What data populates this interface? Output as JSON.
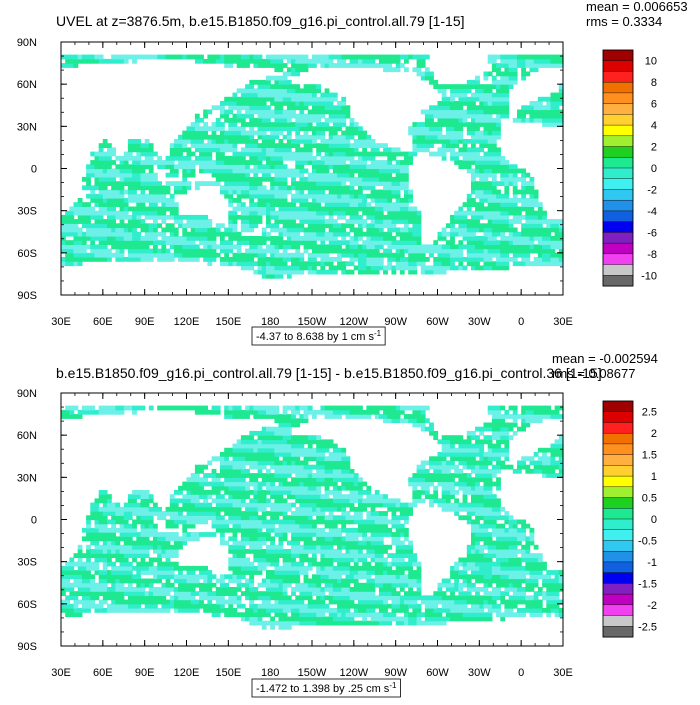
{
  "colors": {
    "ocean_low": "#1ee890",
    "ocean_mid": "#30eecc",
    "ocean_high": "#6cf0e8",
    "land": "#ffffff",
    "frame": "#000000"
  },
  "chart_data": [
    {
      "type": "heatmap",
      "title": "UVEL at z=3876.5m, b.e15.B1850.f09_g16.pi_control.all.79 [1-15]",
      "stats": {
        "mean": "mean = 0.006653",
        "rms": "rms = 0.3334"
      },
      "x_ticks": [
        "30E",
        "60E",
        "90E",
        "120E",
        "150E",
        "180",
        "150W",
        "120W",
        "90W",
        "60W",
        "30W",
        "0",
        "30E"
      ],
      "y_ticks": [
        "90N",
        "60N",
        "30N",
        "0",
        "30S",
        "60S",
        "90S"
      ],
      "xlim": [
        30,
        390
      ],
      "ylim": [
        -90,
        90
      ],
      "range_label": "-4.37 to 8.638 by 1 cm s",
      "range_sup": "-1",
      "colorbar": {
        "labels": [
          "10",
          "8",
          "6",
          "4",
          "2",
          "0",
          "-2",
          "-4",
          "-6",
          "-8",
          "-10"
        ],
        "colors": [
          "#a00000",
          "#dd0000",
          "#ff2020",
          "#f07000",
          "#ff9020",
          "#ffb040",
          "#ffd030",
          "#ffff00",
          "#a0f030",
          "#20d020",
          "#1ee890",
          "#30eecc",
          "#40f0f0",
          "#30c8f0",
          "#2090e8",
          "#1060e0",
          "#0000f0",
          "#8020c0",
          "#c000c0",
          "#f040f0",
          "#c8c8c8",
          "#686868"
        ]
      }
    },
    {
      "type": "heatmap",
      "title": "b.e15.B1850.f09_g16.pi_control.all.79 [1-15] - b.e15.B1850.f09_g16.pi_control.36 [1-15]",
      "stats": {
        "mean": "mean = -0.002594",
        "rms": "rms = 0.08677"
      },
      "x_ticks": [
        "30E",
        "60E",
        "90E",
        "120E",
        "150E",
        "180",
        "150W",
        "120W",
        "90W",
        "60W",
        "30W",
        "0",
        "30E"
      ],
      "y_ticks": [
        "90N",
        "60N",
        "30N",
        "0",
        "30S",
        "60S",
        "90S"
      ],
      "xlim": [
        30,
        390
      ],
      "ylim": [
        -90,
        90
      ],
      "range_label": "-1.472 to 1.398 by .25 cm s",
      "range_sup": "-1",
      "colorbar": {
        "labels": [
          "2.5",
          "2",
          "1.5",
          "1",
          "0.5",
          "0",
          "-0.5",
          "-1",
          "-1.5",
          "-2",
          "-2.5"
        ],
        "colors": [
          "#a00000",
          "#dd0000",
          "#ff2020",
          "#f07000",
          "#ff9020",
          "#ffb040",
          "#ffd030",
          "#ffff00",
          "#a0f030",
          "#20d020",
          "#1ee890",
          "#30eecc",
          "#40f0f0",
          "#30c8f0",
          "#2090e8",
          "#1060e0",
          "#0000f0",
          "#8020c0",
          "#c000c0",
          "#f040f0",
          "#c8c8c8",
          "#686868"
        ]
      }
    }
  ]
}
